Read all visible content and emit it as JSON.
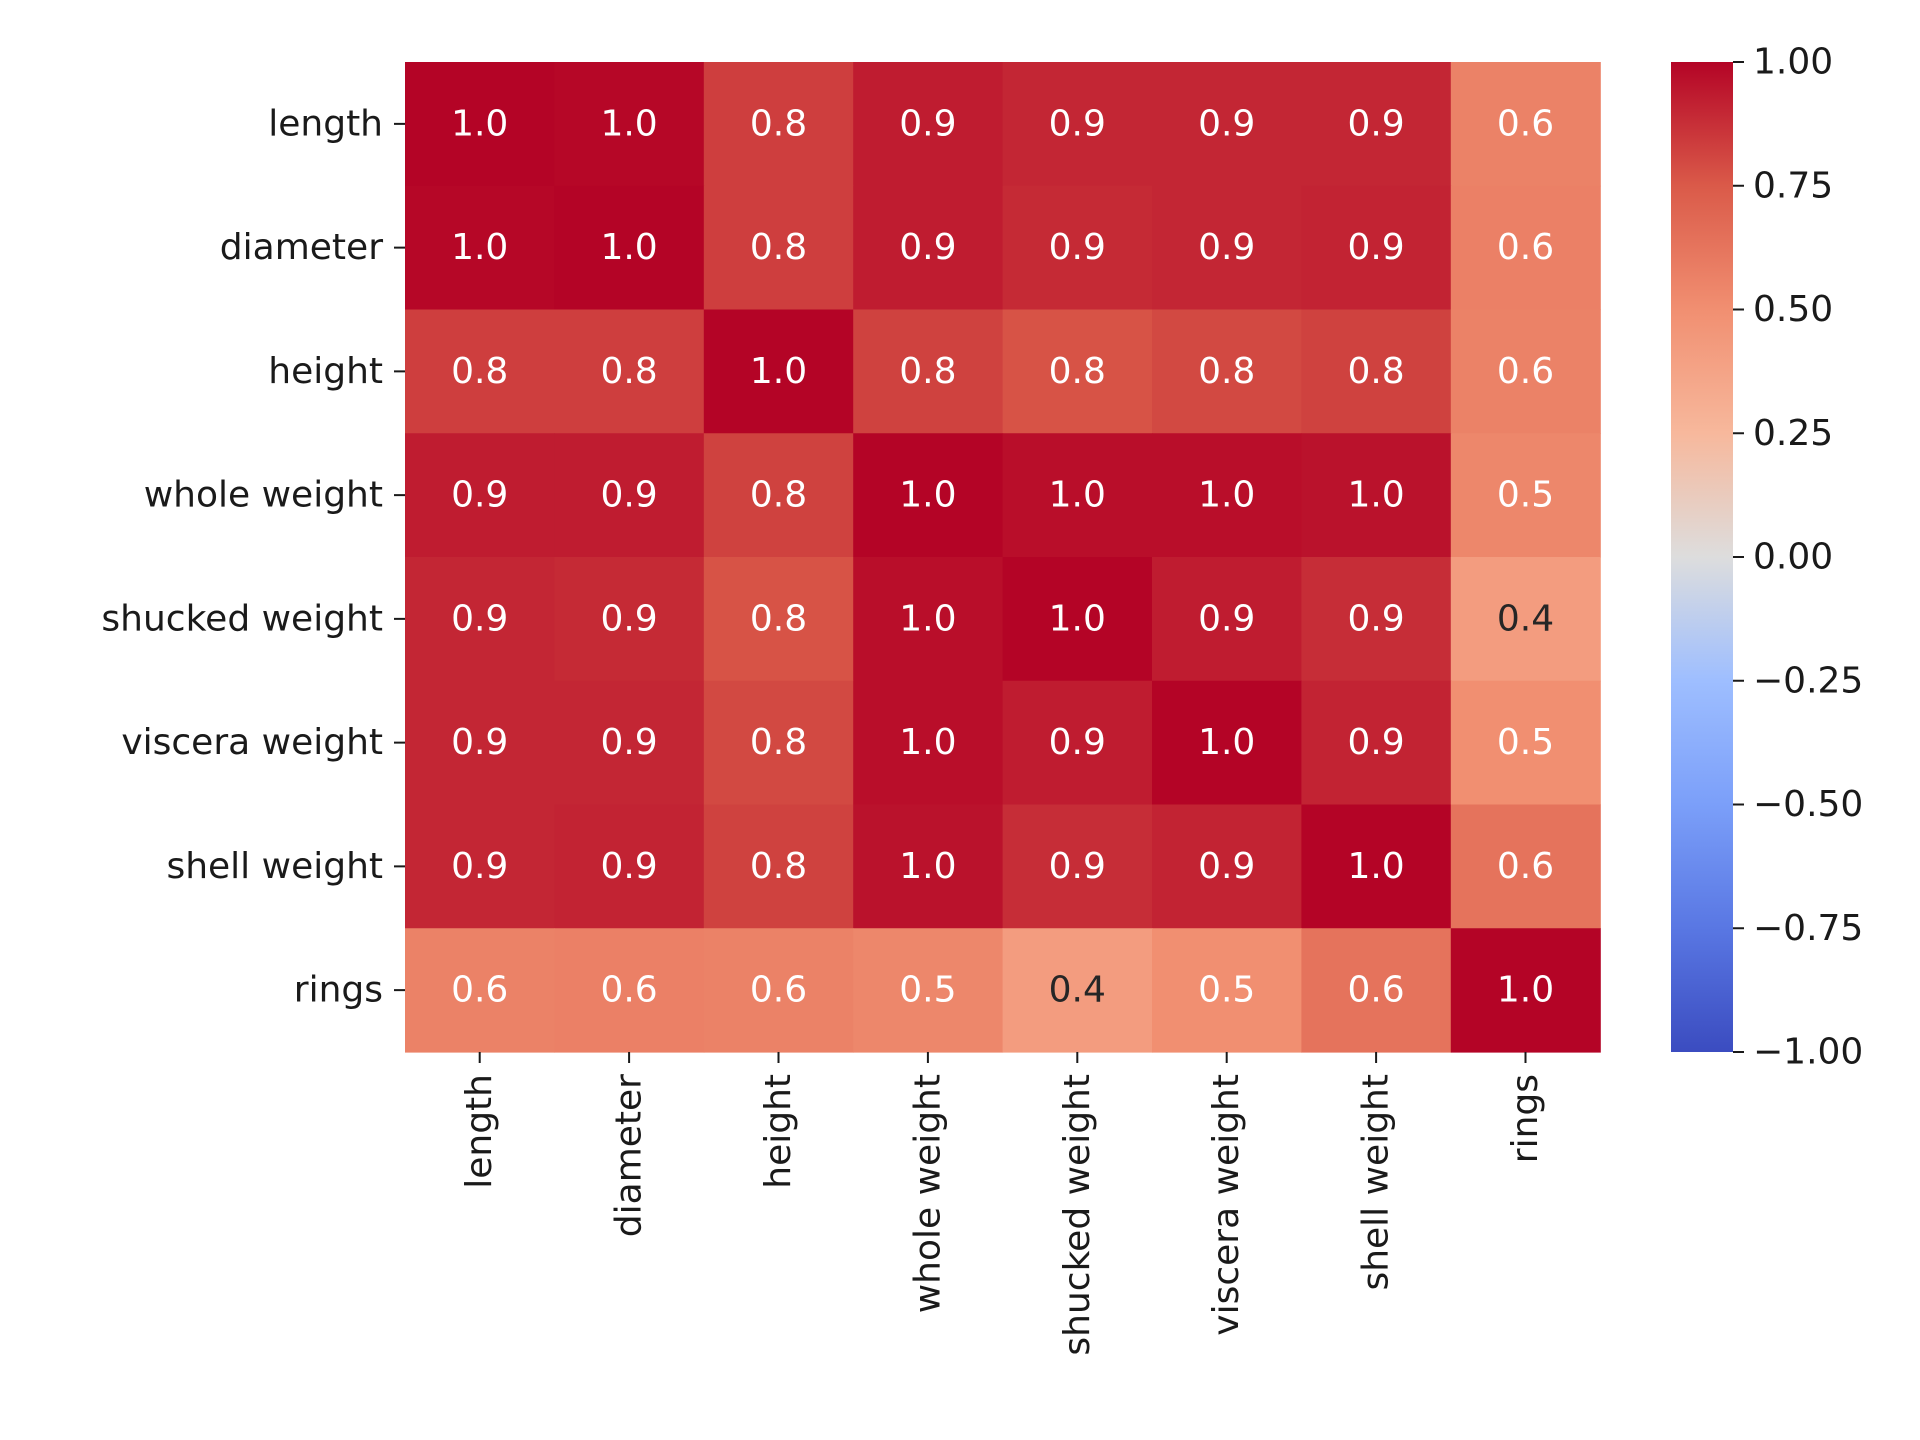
{
  "chart_data": {
    "type": "heatmap",
    "title": "",
    "xlabel": "",
    "ylabel": "",
    "x_labels": [
      "length",
      "diameter",
      "height",
      "whole weight",
      "shucked weight",
      "viscera weight",
      "shell weight",
      "rings"
    ],
    "y_labels": [
      "length",
      "diameter",
      "height",
      "whole weight",
      "shucked weight",
      "viscera weight",
      "shell weight",
      "rings"
    ],
    "values": [
      [
        1.0,
        0.99,
        0.83,
        0.93,
        0.9,
        0.9,
        0.9,
        0.56
      ],
      [
        0.99,
        1.0,
        0.83,
        0.93,
        0.89,
        0.9,
        0.91,
        0.57
      ],
      [
        0.83,
        0.83,
        1.0,
        0.82,
        0.77,
        0.8,
        0.82,
        0.56
      ],
      [
        0.93,
        0.93,
        0.82,
        1.0,
        0.97,
        0.97,
        0.96,
        0.54
      ],
      [
        0.9,
        0.89,
        0.77,
        0.97,
        1.0,
        0.93,
        0.88,
        0.42
      ],
      [
        0.9,
        0.9,
        0.8,
        0.97,
        0.93,
        1.0,
        0.91,
        0.5
      ],
      [
        0.9,
        0.91,
        0.82,
        0.96,
        0.88,
        0.91,
        1.0,
        0.63
      ],
      [
        0.56,
        0.57,
        0.56,
        0.54,
        0.42,
        0.5,
        0.63,
        1.0
      ]
    ],
    "annotations": [
      [
        "1.0",
        "1.0",
        "0.8",
        "0.9",
        "0.9",
        "0.9",
        "0.9",
        "0.6"
      ],
      [
        "1.0",
        "1.0",
        "0.8",
        "0.9",
        "0.9",
        "0.9",
        "0.9",
        "0.6"
      ],
      [
        "0.8",
        "0.8",
        "1.0",
        "0.8",
        "0.8",
        "0.8",
        "0.8",
        "0.6"
      ],
      [
        "0.9",
        "0.9",
        "0.8",
        "1.0",
        "1.0",
        "1.0",
        "1.0",
        "0.5"
      ],
      [
        "0.9",
        "0.9",
        "0.8",
        "1.0",
        "1.0",
        "0.9",
        "0.9",
        "0.4"
      ],
      [
        "0.9",
        "0.9",
        "0.8",
        "1.0",
        "0.9",
        "1.0",
        "0.9",
        "0.5"
      ],
      [
        "0.9",
        "0.9",
        "0.8",
        "1.0",
        "0.9",
        "0.9",
        "1.0",
        "0.6"
      ],
      [
        "0.6",
        "0.6",
        "0.6",
        "0.5",
        "0.4",
        "0.5",
        "0.6",
        "1.0"
      ]
    ],
    "colormap": "coolwarm",
    "vmin": -1.0,
    "vmax": 1.0,
    "colorbar_ticks": [
      "1.00",
      "0.75",
      "0.50",
      "0.25",
      "0.00",
      "−0.25",
      "−0.50",
      "−0.75",
      "−1.00"
    ],
    "colorbar_tick_values": [
      1.0,
      0.75,
      0.5,
      0.25,
      0.0,
      -0.25,
      -0.5,
      -0.75,
      -1.0
    ],
    "colors": {
      "low": "#3b4cc0",
      "mid": "#dddddd",
      "high": "#b40426"
    }
  }
}
